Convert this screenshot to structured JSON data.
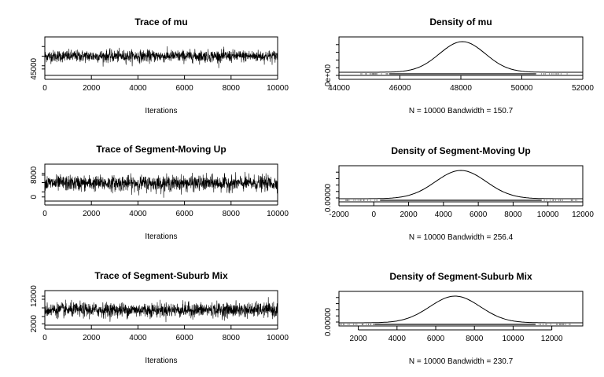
{
  "chart_data": [
    {
      "type": "line",
      "title": "Trace of mu",
      "xlabel": "Iterations",
      "xlim": [
        0,
        10000
      ],
      "xticks": [
        "0",
        "2000",
        "4000",
        "6000",
        "8000",
        "10000"
      ],
      "ylim": [
        43500,
        52500
      ],
      "yticks": [
        "45000"
      ],
      "series": [
        {
          "values": {
            "iterations": 10000,
            "center": 48000,
            "sd": 700
          }
        }
      ]
    },
    {
      "type": "area",
      "title": "Density of mu",
      "xlabel": "N = 10000   Bandwidth = 150.7",
      "xlim": [
        44000,
        52000
      ],
      "xticks": [
        "44000",
        "46000",
        "48000",
        "50000",
        "52000"
      ],
      "yticks": [
        "0e+00"
      ],
      "series": [
        {
          "values": {
            "n": 10000,
            "bandwidth": 150.7,
            "mean": 48050,
            "sd": 750,
            "peak": 0.00053
          }
        }
      ]
    },
    {
      "type": "line",
      "title": "Trace of Segment-Moving Up",
      "xlabel": "Iterations",
      "xlim": [
        0,
        10000
      ],
      "xticks": [
        "0",
        "2000",
        "4000",
        "6000",
        "8000",
        "10000"
      ],
      "ylim": [
        -1500,
        12000
      ],
      "yticks": [
        "0",
        "8000"
      ],
      "series": [
        {
          "values": {
            "iterations": 10000,
            "center": 5000,
            "sd": 1400
          }
        }
      ]
    },
    {
      "type": "area",
      "title": "Density of Segment-Moving Up",
      "xlabel": "N = 10000   Bandwidth = 256.4",
      "xlim": [
        -2000,
        12000
      ],
      "xticks": [
        "-2000",
        "0",
        "2000",
        "4000",
        "6000",
        "8000",
        "10000",
        "12000"
      ],
      "yticks": [
        "0.00000"
      ],
      "series": [
        {
          "values": {
            "n": 10000,
            "bandwidth": 256.4,
            "mean": 5000,
            "sd": 1450,
            "peak": 0.00028
          }
        }
      ]
    },
    {
      "type": "line",
      "title": "Trace of Segment-Suburb Mix",
      "xlabel": "Iterations",
      "xlim": [
        0,
        10000
      ],
      "xticks": [
        "0",
        "2000",
        "4000",
        "6000",
        "8000",
        "10000"
      ],
      "ylim": [
        1500,
        14000
      ],
      "yticks": [
        "2000",
        "12000"
      ],
      "series": [
        {
          "values": {
            "iterations": 10000,
            "center": 7000,
            "sd": 1300
          }
        }
      ]
    },
    {
      "type": "area",
      "title": "Density of Segment-Suburb Mix",
      "xlabel": "N = 10000   Bandwidth = 230.7",
      "xlim": [
        1000,
        13600
      ],
      "xticks": [
        "2000",
        "4000",
        "6000",
        "8000",
        "10000",
        "12000"
      ],
      "yticks": [
        "0.00000"
      ],
      "series": [
        {
          "values": {
            "n": 10000,
            "bandwidth": 230.7,
            "mean": 7000,
            "sd": 1300,
            "peak": 0.00031
          }
        }
      ]
    }
  ]
}
